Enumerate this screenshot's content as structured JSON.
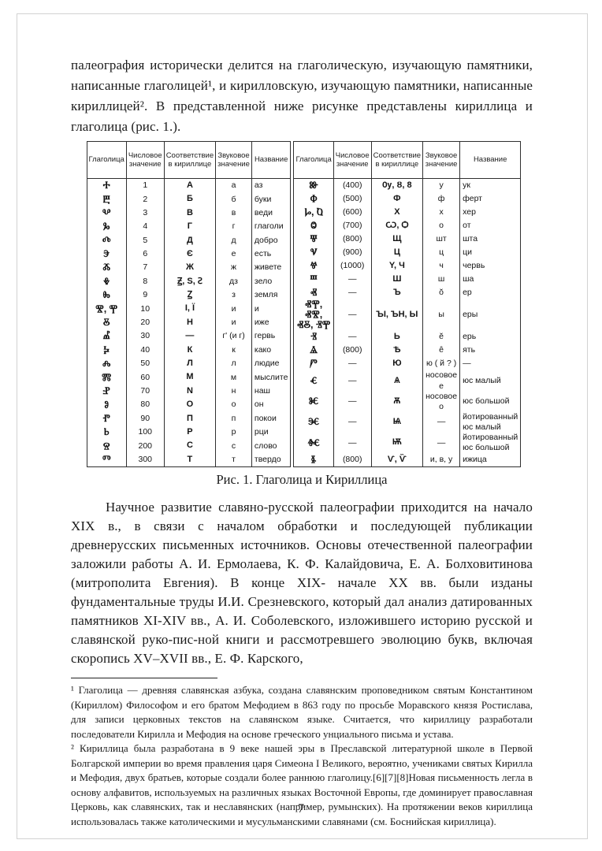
{
  "page": {
    "number": "7"
  },
  "paragraphs": {
    "p1": "палеография исторически делится на глаголическую, изучающую памятники, написанные глаголицей¹, и кирилловскую, изучающую памятники, написанные кириллицей². В представленной ниже рисунке представлены кириллица и глаголица (рис. 1.).",
    "p2": "Научное развитие славяно-русской палеографии приходится на начало XIX в., в связи с началом обработки и последующей публикации древнерусских письменных источников. Основы отечественной палеографии заложили работы А. И. Ермолаева, К. Ф. Калайдовича, Е. А. Болховитинова (митрополита Евгения). В конце XIX- начале XX вв. были изданы фундаментальные труды И.И. Срезневского, который дал анализ датированных памятников XI-XIV вв., А. И. Соболевского, изложившего историю русской и славянской руко-пис-ной книги и рассмотревшего эволюцию букв, включая скоропись XV–XVII вв., Е. Ф. Карского,"
  },
  "figure": {
    "caption": "Рис. 1. Глаголица и Кириллица",
    "columns": [
      "Глаголица",
      "Числовое значение",
      "Соответствие в кириллице",
      "Звуковое значение",
      "Название"
    ],
    "left_rows": [
      [
        "Ⰰ",
        "1",
        "А",
        "а",
        "аз"
      ],
      [
        "Ⰱ",
        "2",
        "Б",
        "б",
        "буки"
      ],
      [
        "Ⰲ",
        "3",
        "В",
        "в",
        "веди"
      ],
      [
        "Ⰳ",
        "4",
        "Г",
        "г",
        "глаголи"
      ],
      [
        "Ⰴ",
        "5",
        "Д",
        "д",
        "добро"
      ],
      [
        "Ⰵ",
        "6",
        "Є",
        "е",
        "есть"
      ],
      [
        "Ⰶ",
        "7",
        "Ж",
        "ж",
        "живете"
      ],
      [
        "Ⰷ",
        "8",
        "Ꙃ, Ѕ, Ꙅ",
        "дз",
        "зело"
      ],
      [
        "Ⰸ",
        "9",
        "Ꙁ",
        "з",
        "земля"
      ],
      [
        "Ⰺ, Ⰹ",
        "10",
        "І, Ї",
        "и",
        "и"
      ],
      [
        "Ⰻ",
        "20",
        "Н",
        "и",
        "иже"
      ],
      [
        "Ⰼ",
        "30",
        "—",
        "г' (и г)",
        "гервь"
      ],
      [
        "Ⰽ",
        "40",
        "К",
        "к",
        "како"
      ],
      [
        "Ⰾ",
        "50",
        "Л",
        "л",
        "людие"
      ],
      [
        "Ⰿ",
        "60",
        "М",
        "м",
        "мыслите"
      ],
      [
        "Ⱀ",
        "70",
        "N",
        "н",
        "наш"
      ],
      [
        "Ⱁ",
        "80",
        "О",
        "о",
        "он"
      ],
      [
        "Ⱂ",
        "90",
        "П",
        "п",
        "покои"
      ],
      [
        "Ⱃ",
        "100",
        "Р",
        "р",
        "рци"
      ],
      [
        "Ⱄ",
        "200",
        "С",
        "с",
        "слово"
      ],
      [
        "Ⱅ",
        "300",
        "Т",
        "т",
        "твердо"
      ]
    ],
    "right_rows": [
      [
        "Ⱆ",
        "(400)",
        "Ѹ, Ȣ, 8",
        "у",
        "ук"
      ],
      [
        "Ⱇ",
        "(500)",
        "Ф",
        "ф",
        "ферт"
      ],
      [
        "Ⱈ, Ⱒ",
        "(600)",
        "Х",
        "х",
        "хер"
      ],
      [
        "Ⱉ",
        "(700)",
        "Ѡ, Ѻ",
        "о",
        "от"
      ],
      [
        "Ⱋ",
        "(800)",
        "Щ",
        "шт",
        "шта"
      ],
      [
        "Ⱌ",
        "(900)",
        "Ц",
        "ц",
        "ци"
      ],
      [
        "Ⱍ",
        "(1000)",
        "Y, Ч",
        "ч",
        "червь"
      ],
      [
        "Ⱎ",
        "—",
        "Ш",
        "ш",
        "ша"
      ],
      [
        "Ⱏ",
        "—",
        "Ъ",
        "ŏ",
        "ер"
      ],
      [
        "ⰟⰉ, ⰟⰊ, ⰟⰋ, ⰠⰉ",
        "—",
        "ЪІ, ЪН, Ы",
        "ы",
        "еры"
      ],
      [
        "Ⱐ",
        "—",
        "Ь",
        "ĕ",
        "ерь"
      ],
      [
        "Ⱑ",
        "(800)",
        "Ѣ",
        "ê",
        "ять"
      ],
      [
        "Ⱓ",
        "—",
        "Ю",
        "ю ( й ? )",
        "—"
      ],
      [
        "Ⱔ",
        "—",
        "Ѧ",
        "носовое е",
        "юс малый"
      ],
      [
        "Ⱘ",
        "—",
        "Ѫ",
        "носовое о",
        "юс большой"
      ],
      [
        "Ⱗ",
        "—",
        "Ѩ",
        "—",
        "йотированный юс малый"
      ],
      [
        "Ⱙ",
        "—",
        "Ѭ",
        "—",
        "йотированный юс большой"
      ],
      [
        "Ⱛ",
        "(800)",
        "Ѵ, Ѷ",
        "и, в, у",
        "ижица"
      ]
    ]
  },
  "footnotes": [
    "¹ Глаголица — древняя славянская азбука, создана славянским проповедником святым Константином (Кириллом) Философом и его братом Мефодием в 863 году по просьбе Моравского князя Ростислава, для записи церковных текстов на славянском языке. Считается, что кириллицу разработали последователи Кирилла и Мефодия на основе греческого унциального письма и устава.",
    "² Кириллица была разработана в 9 веке нашей эры в Преславской литературной школе в Первой Болгарской империи во время правления царя Симеона I Великого, вероятно, учениками святых Кирилла и Мефодия, двух братьев, которые создали более раннюю глаголицу.[6][7][8]Новая письменность легла в основу алфавитов, используемых на различных языках Восточной Европы, где доминирует православная Церковь, как славянских, так и неславянских (например, румынских). На протяжении веков кириллица использовалась также католическими и мусульманскими славянами (см. Боснийская кириллица)."
  ]
}
